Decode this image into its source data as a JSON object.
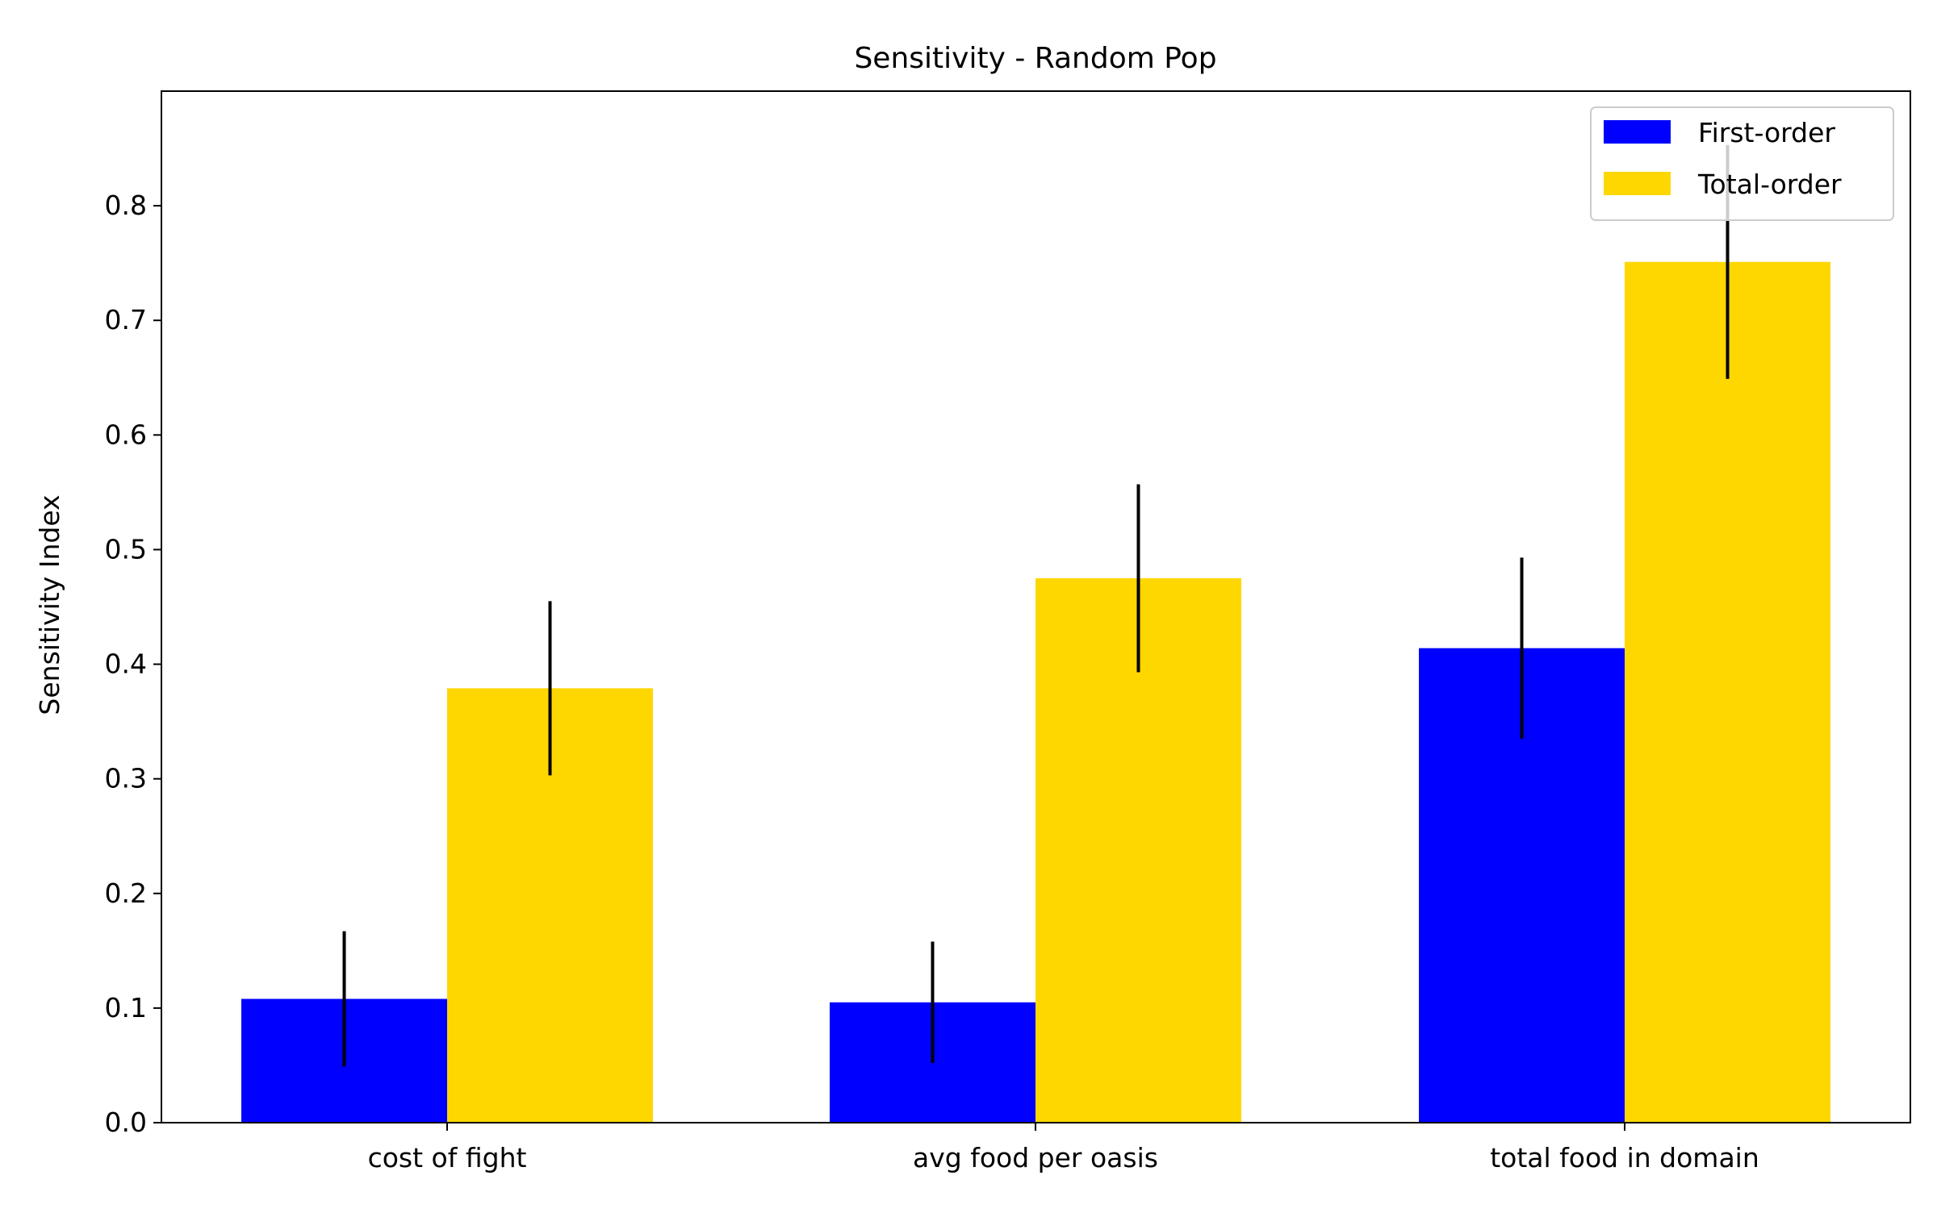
{
  "chart_data": {
    "type": "bar",
    "title": "Sensitivity - Random Pop",
    "xlabel": "",
    "ylabel": "Sensitivity Index",
    "categories": [
      "cost of fight",
      "avg food per oasis",
      "total food in domain"
    ],
    "series": [
      {
        "name": "First-order",
        "color": "#0000ff",
        "values": [
          0.108,
          0.105,
          0.414
        ],
        "errors": [
          0.059,
          0.053,
          0.079
        ]
      },
      {
        "name": "Total-order",
        "color": "#ffd700",
        "values": [
          0.379,
          0.475,
          0.751
        ],
        "errors": [
          0.076,
          0.082,
          0.102
        ]
      }
    ],
    "ylim": [
      0,
      0.9
    ],
    "yticks": [
      0.0,
      0.1,
      0.2,
      0.3,
      0.4,
      0.5,
      0.6,
      0.7,
      0.8
    ],
    "ytick_labels": [
      "0.0",
      "0.1",
      "0.2",
      "0.3",
      "0.4",
      "0.5",
      "0.6",
      "0.7",
      "0.8"
    ],
    "grid": false,
    "legend_position": "top-right"
  }
}
